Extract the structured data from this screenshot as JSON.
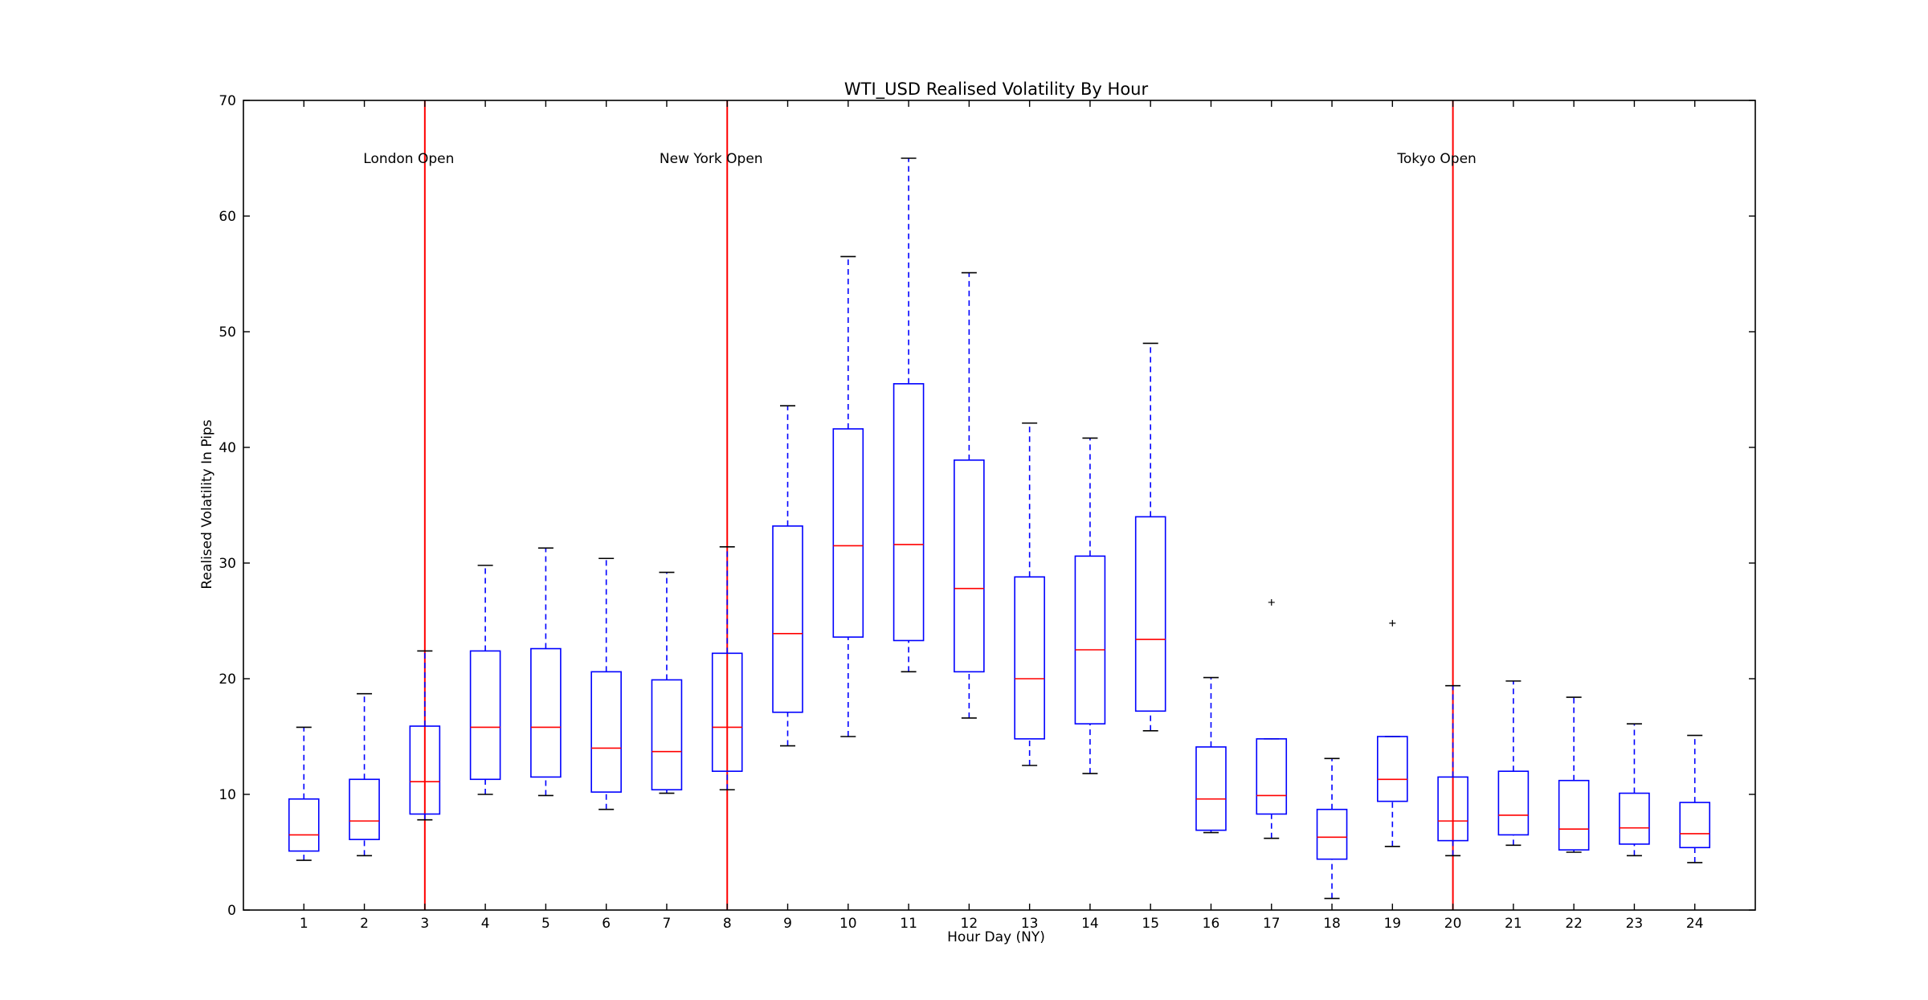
{
  "chart_data": {
    "type": "box",
    "title": "WTI_USD Realised Volatility By Hour",
    "xlabel": "Hour Day (NY)",
    "ylabel": "Realised Volatility In Pips",
    "ylim": [
      0,
      70
    ],
    "yticks": [
      0,
      10,
      20,
      30,
      40,
      50,
      60,
      70
    ],
    "grid": false,
    "colors": {
      "box": "#0000ff",
      "median": "#ff0000",
      "whisker": "#0000ff",
      "cap": "#000000",
      "vline": "#ff0000",
      "frame": "#000000"
    },
    "categories": [
      "1",
      "2",
      "3",
      "4",
      "5",
      "6",
      "7",
      "8",
      "9",
      "10",
      "11",
      "12",
      "13",
      "14",
      "15",
      "16",
      "17",
      "18",
      "19",
      "20",
      "21",
      "22",
      "23",
      "24"
    ],
    "boxes": [
      {
        "whislo": 4.3,
        "q1": 5.1,
        "med": 6.5,
        "q3": 9.6,
        "whishi": 15.8,
        "fliers": []
      },
      {
        "whislo": 4.7,
        "q1": 6.1,
        "med": 7.7,
        "q3": 11.3,
        "whishi": 18.7,
        "fliers": []
      },
      {
        "whislo": 7.8,
        "q1": 8.3,
        "med": 11.1,
        "q3": 15.9,
        "whishi": 22.4,
        "fliers": []
      },
      {
        "whislo": 10.0,
        "q1": 11.3,
        "med": 15.8,
        "q3": 22.4,
        "whishi": 29.8,
        "fliers": []
      },
      {
        "whislo": 9.9,
        "q1": 11.5,
        "med": 15.8,
        "q3": 22.6,
        "whishi": 31.3,
        "fliers": []
      },
      {
        "whislo": 8.7,
        "q1": 10.2,
        "med": 14.0,
        "q3": 20.6,
        "whishi": 30.4,
        "fliers": []
      },
      {
        "whislo": 10.1,
        "q1": 10.4,
        "med": 13.7,
        "q3": 19.9,
        "whishi": 29.2,
        "fliers": []
      },
      {
        "whislo": 10.4,
        "q1": 12.0,
        "med": 15.8,
        "q3": 22.2,
        "whishi": 31.4,
        "fliers": []
      },
      {
        "whislo": 14.2,
        "q1": 17.1,
        "med": 23.9,
        "q3": 33.2,
        "whishi": 43.6,
        "fliers": []
      },
      {
        "whislo": 15.0,
        "q1": 23.6,
        "med": 31.5,
        "q3": 41.6,
        "whishi": 56.5,
        "fliers": []
      },
      {
        "whislo": 20.6,
        "q1": 23.3,
        "med": 31.6,
        "q3": 45.5,
        "whishi": 65.0,
        "fliers": []
      },
      {
        "whislo": 16.6,
        "q1": 20.6,
        "med": 27.8,
        "q3": 38.9,
        "whishi": 55.1,
        "fliers": []
      },
      {
        "whislo": 12.5,
        "q1": 14.8,
        "med": 20.0,
        "q3": 28.8,
        "whishi": 42.1,
        "fliers": []
      },
      {
        "whislo": 11.8,
        "q1": 16.1,
        "med": 22.5,
        "q3": 30.6,
        "whishi": 40.8,
        "fliers": []
      },
      {
        "whislo": 15.5,
        "q1": 17.2,
        "med": 23.4,
        "q3": 34.0,
        "whishi": 49.0,
        "fliers": []
      },
      {
        "whislo": 6.7,
        "q1": 6.9,
        "med": 9.6,
        "q3": 14.1,
        "whishi": 20.1,
        "fliers": []
      },
      {
        "whislo": 6.2,
        "q1": 8.3,
        "med": 9.9,
        "q3": 14.8,
        "whishi": 14.8,
        "fliers": [
          26.6
        ]
      },
      {
        "whislo": 1.0,
        "q1": 4.4,
        "med": 6.3,
        "q3": 8.7,
        "whishi": 13.1,
        "fliers": []
      },
      {
        "whislo": 5.5,
        "q1": 9.4,
        "med": 11.3,
        "q3": 15.0,
        "whishi": 15.0,
        "fliers": [
          24.8
        ]
      },
      {
        "whislo": 4.7,
        "q1": 6.0,
        "med": 7.7,
        "q3": 11.5,
        "whishi": 19.4,
        "fliers": []
      },
      {
        "whislo": 5.6,
        "q1": 6.5,
        "med": 8.2,
        "q3": 12.0,
        "whishi": 19.8,
        "fliers": []
      },
      {
        "whislo": 5.0,
        "q1": 5.2,
        "med": 7.0,
        "q3": 11.2,
        "whishi": 18.4,
        "fliers": []
      },
      {
        "whislo": 4.7,
        "q1": 5.7,
        "med": 7.1,
        "q3": 10.1,
        "whishi": 16.1,
        "fliers": []
      },
      {
        "whislo": 4.1,
        "q1": 5.4,
        "med": 6.6,
        "q3": 9.3,
        "whishi": 15.1,
        "fliers": []
      }
    ],
    "vlines": [
      {
        "x": 3,
        "label": "London Open"
      },
      {
        "x": 8,
        "label": "New York Open"
      },
      {
        "x": 20,
        "label": "Tokyo Open"
      }
    ],
    "annotation_y": 65
  }
}
